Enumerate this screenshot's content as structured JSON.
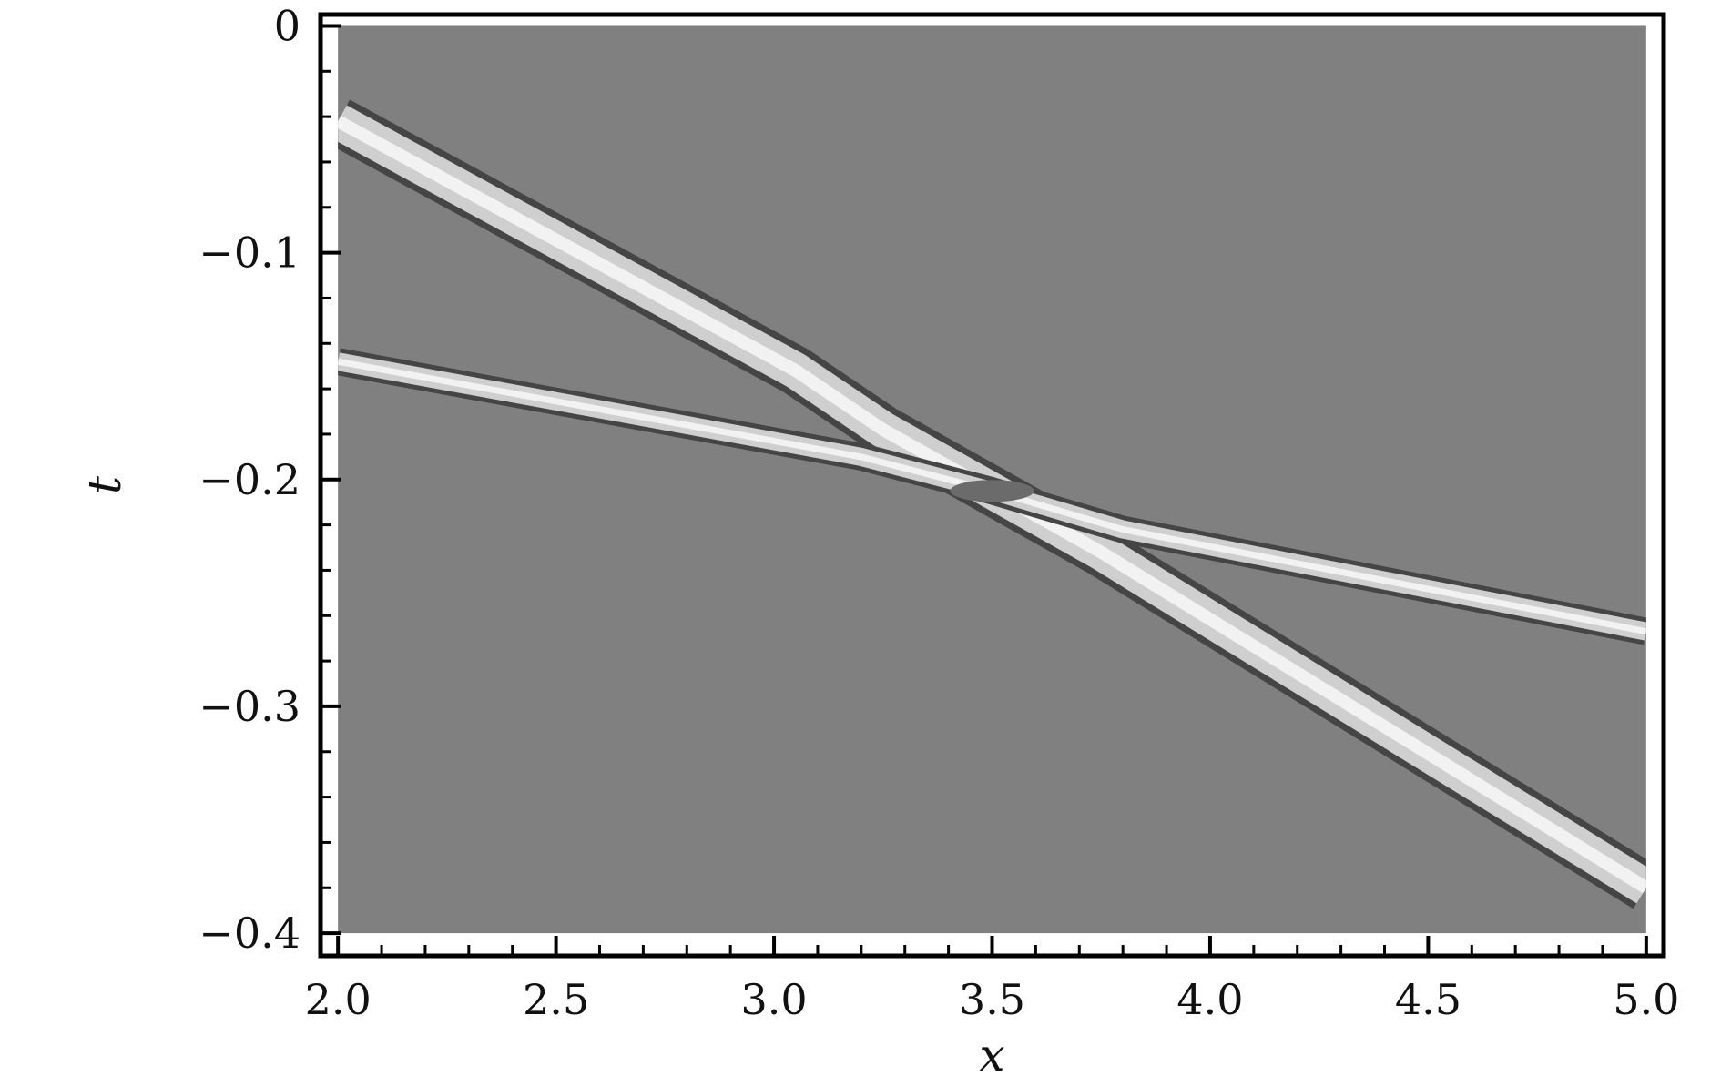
{
  "chart_data": {
    "type": "heatmap",
    "title": "",
    "xlabel": "x",
    "ylabel": "t",
    "xlim": [
      1.96,
      5.04
    ],
    "ylim": [
      -0.41,
      0.005
    ],
    "data_extent": {
      "x": [
        2.0,
        5.0
      ],
      "t": [
        -0.4,
        0.0
      ]
    },
    "colormap": "grayscale",
    "background_color": "#808080",
    "band_color": "#f2f2f2",
    "edge_color": "#454545",
    "grid": false,
    "legend": "none",
    "xticks": [
      {
        "value": 2.0,
        "label": "2.0"
      },
      {
        "value": 2.5,
        "label": "2.5"
      },
      {
        "value": 3.0,
        "label": "3.0"
      },
      {
        "value": 3.5,
        "label": "3.5"
      },
      {
        "value": 4.0,
        "label": "4.0"
      },
      {
        "value": 4.5,
        "label": "4.5"
      },
      {
        "value": 5.0,
        "label": "5.0"
      }
    ],
    "yticks": [
      {
        "value": 0.0,
        "label": "0"
      },
      {
        "value": -0.1,
        "label": "−0.1"
      },
      {
        "value": -0.2,
        "label": "−0.2"
      },
      {
        "value": -0.3,
        "label": "−0.3"
      },
      {
        "value": -0.4,
        "label": "−0.4"
      }
    ],
    "x_minor_step": 0.1,
    "y_minor_step": 0.02,
    "series": [
      {
        "x": [
          2.0,
          3.05,
          3.25,
          3.5,
          3.75,
          5.0
        ],
        "t": [
          -0.042,
          -0.152,
          -0.178,
          -0.205,
          -0.232,
          -0.38
        ]
      },
      {
        "x": [
          2.0,
          3.2,
          3.5,
          3.8,
          5.0
        ],
        "t": [
          -0.148,
          -0.19,
          -0.205,
          -0.222,
          -0.267
        ]
      }
    ]
  }
}
